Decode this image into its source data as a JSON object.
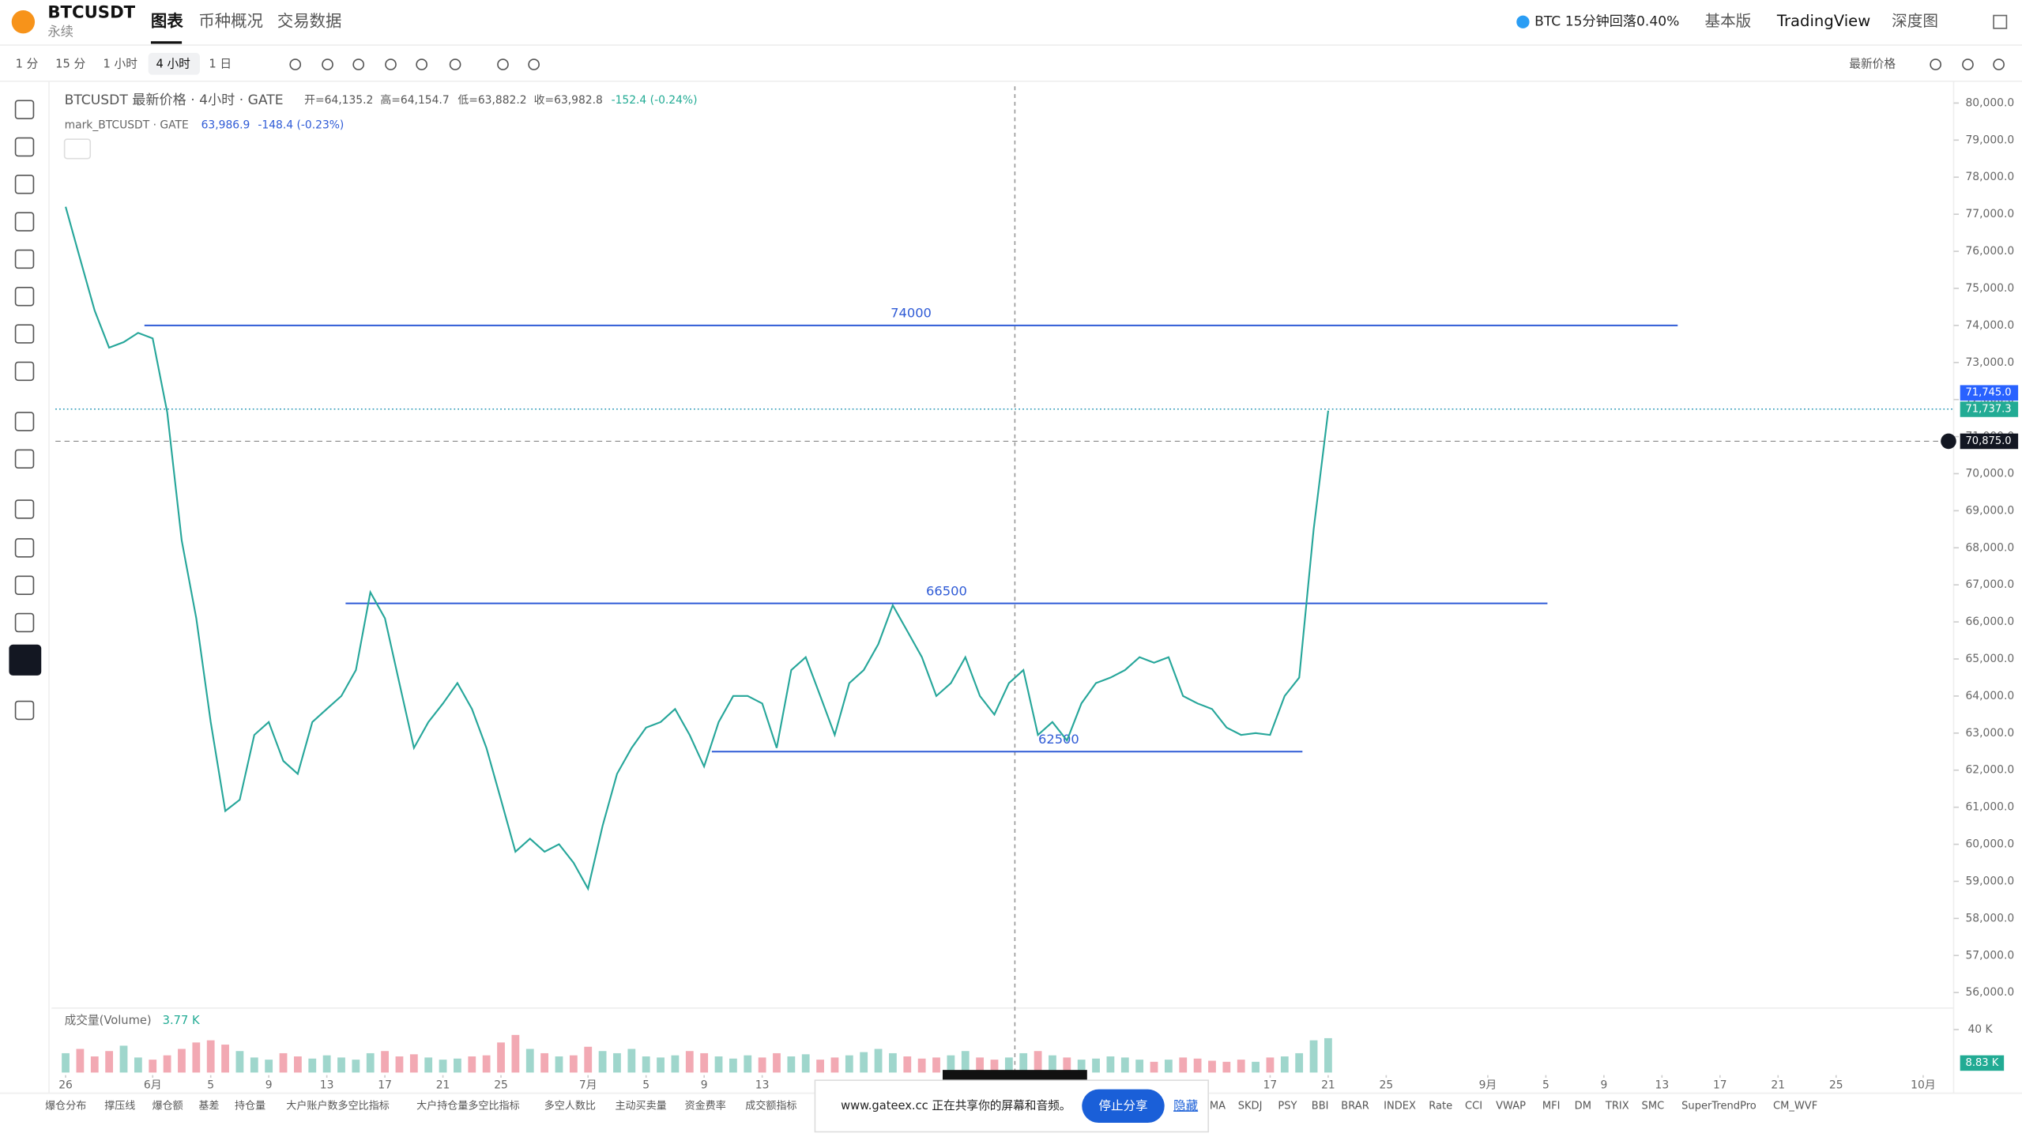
{
  "header": {
    "symbol": "BTCUSDT",
    "contract_type": "永续",
    "tabs": [
      "图表",
      "币种概况",
      "交易数据"
    ],
    "alert": "BTC 15分钟回落0.40%",
    "views": [
      "基本版",
      "TradingView",
      "深度图"
    ]
  },
  "toolbar": {
    "intervals": [
      "1 分",
      "15 分",
      "1 小时",
      "4 小时",
      "1 日"
    ],
    "price_type": "最新价格"
  },
  "legend": {
    "main": "BTCUSDT 最新价格 · 4小时 · GATE",
    "open": "开=64,135.2",
    "high": "高=64,154.7",
    "low": "低=63,882.2",
    "close": "收=63,982.8",
    "change": "-152.4 (-0.24%)",
    "mark": "mark_BTCUSDT · GATE",
    "mark_price": "63,986.9",
    "mark_change": "-148.4 (-0.23%)"
  },
  "chart_data": {
    "type": "line",
    "series": [
      {
        "color": "#26a69a",
        "values": [
          77200,
          75800,
          74400,
          73400,
          73550,
          73800,
          73650,
          71650,
          68200,
          66100,
          63300,
          60900,
          61200,
          62950,
          63300,
          62250,
          61900,
          63300,
          63650,
          64000,
          64700,
          66800,
          66100,
          64350,
          62600,
          63300,
          63800,
          64350,
          63650,
          62600,
          61200,
          59800,
          60150,
          59800,
          60000,
          59500,
          58800,
          60500,
          61900,
          62600,
          63150,
          63300,
          63650,
          62950,
          62100,
          63300,
          64000,
          64000,
          63800,
          62600,
          64700,
          65050,
          64000,
          62950,
          64350,
          64700,
          65400,
          66450,
          65750,
          65050,
          64000,
          64350,
          65050,
          64000,
          63500,
          64350,
          64700,
          62950,
          63300,
          62800,
          63800,
          64350,
          64500,
          64700,
          65050,
          64900,
          65050,
          64000,
          63800,
          63650,
          63150,
          62950,
          63000,
          62950,
          64000,
          64500,
          68500,
          71700
        ]
      }
    ],
    "xlim": [
      -0.7,
      130.1
    ],
    "ylim": [
      55650,
      80450
    ],
    "xticks": [
      {
        "value": 0,
        "label": "26"
      },
      {
        "value": 6,
        "label": "6月"
      },
      {
        "value": 10,
        "label": "5"
      },
      {
        "value": 14,
        "label": "9"
      },
      {
        "value": 18,
        "label": "13"
      },
      {
        "value": 22,
        "label": "17"
      },
      {
        "value": 26,
        "label": "21"
      },
      {
        "value": 30,
        "label": "25"
      },
      {
        "value": 36,
        "label": "7月"
      },
      {
        "value": 40,
        "label": "5"
      },
      {
        "value": 44,
        "label": "9"
      },
      {
        "value": 48,
        "label": "13"
      },
      {
        "value": 83,
        "label": "17"
      },
      {
        "value": 87,
        "label": "21"
      },
      {
        "value": 91,
        "label": "25"
      },
      {
        "value": 98,
        "label": "9月"
      },
      {
        "value": 102,
        "label": "5"
      },
      {
        "value": 106,
        "label": "9"
      },
      {
        "value": 110,
        "label": "13"
      },
      {
        "value": 114,
        "label": "17"
      },
      {
        "value": 118,
        "label": "21"
      },
      {
        "value": 122,
        "label": "25"
      },
      {
        "value": 128,
        "label": "10月"
      }
    ],
    "yticks": [
      {
        "value": 80000,
        "label": "80,000.0"
      },
      {
        "value": 79000,
        "label": "79,000.0"
      },
      {
        "value": 78000,
        "label": "78,000.0"
      },
      {
        "value": 77000,
        "label": "77,000.0"
      },
      {
        "value": 76000,
        "label": "76,000.0"
      },
      {
        "value": 75000,
        "label": "75,000.0"
      },
      {
        "value": 74000,
        "label": "74,000.0"
      },
      {
        "value": 73000,
        "label": "73,000.0"
      },
      {
        "value": 72000,
        "label": "72,000.0"
      },
      {
        "value": 71000,
        "label": "71,000.0"
      },
      {
        "value": 70000,
        "label": "70,000.0"
      },
      {
        "value": 69000,
        "label": "69,000.0"
      },
      {
        "value": 68000,
        "label": "68,000.0"
      },
      {
        "value": 67000,
        "label": "67,000.0"
      },
      {
        "value": 66000,
        "label": "66,000.0"
      },
      {
        "value": 65000,
        "label": "65,000.0"
      },
      {
        "value": 64000,
        "label": "64,000.0"
      },
      {
        "value": 63000,
        "label": "63,000.0"
      },
      {
        "value": 62000,
        "label": "62,000.0"
      },
      {
        "value": 61000,
        "label": "61,000.0"
      },
      {
        "value": 60000,
        "label": "60,000.0"
      },
      {
        "value": 59000,
        "label": "59,000.0"
      },
      {
        "value": 58000,
        "label": "58,000.0"
      },
      {
        "value": 57000,
        "label": "57,000.0"
      },
      {
        "value": 56000,
        "label": "56,000.0"
      }
    ],
    "drawings": [
      74000,
      66500,
      62500
    ],
    "price_tags": [
      {
        "value": 71745,
        "label": "71,745.0",
        "color": "#2962ff"
      },
      {
        "value": 71737.3,
        "label": "71,737.3",
        "color": "#22ab94"
      },
      {
        "value": 70875,
        "label": "70,875.0",
        "color": "#131722"
      }
    ],
    "volume": {
      "title": "成交量(Volume)",
      "value_label": "3.77 K",
      "ylim": [
        0,
        48
      ],
      "yticks": [
        {
          "value": 40,
          "label": "40 K"
        }
      ],
      "last": {
        "value": 8.83,
        "label": "8.83 K"
      },
      "values": [
        18,
        22,
        15,
        20,
        25,
        14,
        12,
        16,
        22,
        28,
        30,
        26,
        20,
        14,
        12,
        18,
        15,
        13,
        16,
        14,
        12,
        18,
        20,
        15,
        17,
        14,
        12,
        13,
        15,
        16,
        28,
        35,
        22,
        18,
        15,
        16,
        24,
        20,
        18,
        22,
        15,
        14,
        16,
        20,
        18,
        15,
        13,
        16,
        14,
        18,
        15,
        17,
        12,
        14,
        16,
        19,
        22,
        18,
        15,
        13,
        14,
        16,
        20,
        14,
        12,
        14,
        18,
        20,
        16,
        14,
        12,
        13,
        15,
        14,
        12,
        10,
        12,
        14,
        13,
        11,
        10,
        12,
        10,
        14,
        15,
        18,
        30,
        32
      ]
    }
  },
  "indicators": {
    "left": [
      "爆仓分布",
      "撑压线",
      "爆仓额",
      "基差",
      "持仓量",
      "大户账户数多空比指标",
      "大户持仓量多空比指标",
      "多空人数比",
      "主动买卖量",
      "资金费率",
      "成交额指标"
    ],
    "right": [
      "MA",
      "SKDJ",
      "PSY",
      "BBI",
      "BRAR",
      "INDEX",
      "Rate",
      "CCI",
      "VWAP",
      "MFI",
      "DM",
      "TRIX",
      "SMC",
      "SuperTrendPro",
      "CM_WVF"
    ]
  },
  "share_bar": {
    "message": "www.gateex.cc 正在共享你的屏幕和音频。",
    "stop": "停止分享",
    "hide": "隐藏"
  }
}
